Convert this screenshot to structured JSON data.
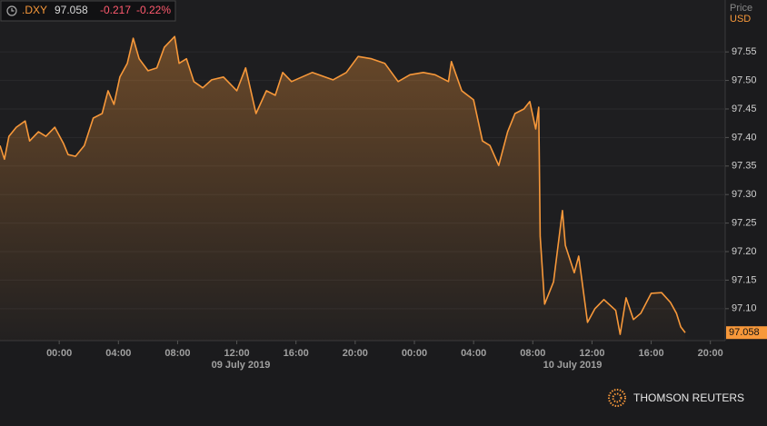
{
  "chart_data": {
    "type": "line",
    "symbol": ".DXY",
    "last_price": 97.058,
    "change": -0.217,
    "change_pct": "-0.22%",
    "axis_title": "Price",
    "currency": "USD",
    "brand": "THOMSON REUTERS",
    "date_labels": [
      "09 July 2019",
      "10 July 2019"
    ],
    "x": [
      0,
      0.3,
      0.6,
      1.1,
      1.7,
      2.0,
      2.6,
      3.1,
      3.7,
      4.3,
      4.6,
      5.1,
      5.7,
      6.3,
      6.9,
      7.3,
      7.7,
      8.1,
      8.6,
      9.0,
      9.4,
      10.0,
      10.6,
      11.1,
      11.8,
      12.1,
      12.6,
      13.1,
      13.7,
      14.3,
      15.1,
      16.0,
      16.6,
      17.3,
      18.0,
      18.6,
      19.1,
      19.7,
      21.1,
      22.5,
      23.4,
      24.2,
      25.1,
      26.0,
      26.9,
      27.7,
      28.6,
      29.4,
      30.3,
      30.5,
      31.2,
      32.0,
      32.6,
      33.1,
      33.7,
      34.3,
      34.8,
      35.4,
      35.8,
      36.2,
      36.4,
      36.5,
      36.8,
      37.4,
      38.0,
      38.2,
      38.8,
      39.1,
      39.7,
      40.2,
      40.8,
      41.6,
      41.9,
      42.3,
      42.8,
      43.3,
      44.0,
      44.7,
      45.3,
      45.7,
      46.0,
      46.3
    ],
    "series": [
      {
        "name": ".DXY",
        "color": "#f7983a",
        "values": [
          97.386,
          97.362,
          97.402,
          97.418,
          97.429,
          97.394,
          97.41,
          97.402,
          97.418,
          97.389,
          97.37,
          97.367,
          97.386,
          97.434,
          97.442,
          97.482,
          97.458,
          97.506,
          97.53,
          97.574,
          97.538,
          97.517,
          97.522,
          97.558,
          97.577,
          97.53,
          97.538,
          97.498,
          97.487,
          97.501,
          97.506,
          97.482,
          97.522,
          97.442,
          97.482,
          97.474,
          97.514,
          97.498,
          97.514,
          97.501,
          97.514,
          97.542,
          97.538,
          97.53,
          97.498,
          97.51,
          97.514,
          97.51,
          97.498,
          97.533,
          97.482,
          97.466,
          97.394,
          97.386,
          97.351,
          97.41,
          97.442,
          97.45,
          97.463,
          97.415,
          97.453,
          97.227,
          97.108,
          97.147,
          97.272,
          97.211,
          97.163,
          97.192,
          97.076,
          97.1,
          97.116,
          97.097,
          97.055,
          97.119,
          97.081,
          97.092,
          97.127,
          97.128,
          97.111,
          97.092,
          97.068,
          97.058
        ]
      }
    ],
    "xlim": [
      0,
      49
    ],
    "xticks": [
      {
        "value": 4,
        "label": "00:00"
      },
      {
        "value": 8,
        "label": "04:00"
      },
      {
        "value": 12,
        "label": "08:00"
      },
      {
        "value": 16,
        "label": "12:00"
      },
      {
        "value": 20,
        "label": "16:00"
      },
      {
        "value": 24,
        "label": "20:00"
      },
      {
        "value": 28,
        "label": "00:00"
      },
      {
        "value": 32,
        "label": "04:00"
      },
      {
        "value": 36,
        "label": "08:00"
      },
      {
        "value": 40,
        "label": "12:00"
      },
      {
        "value": 44,
        "label": "16:00"
      },
      {
        "value": 48,
        "label": "20:00"
      }
    ],
    "ylim": [
      97.044,
      97.641
    ],
    "yticks": [
      {
        "value": 97.1,
        "label": "97.10"
      },
      97.15,
      {
        "value": 97.2,
        "label": "97.20"
      },
      97.25,
      {
        "value": 97.3,
        "label": "97.30"
      },
      97.35,
      {
        "value": 97.4,
        "label": "97.40"
      },
      97.45,
      {
        "value": 97.5,
        "label": "97.50"
      },
      97.55
    ]
  }
}
